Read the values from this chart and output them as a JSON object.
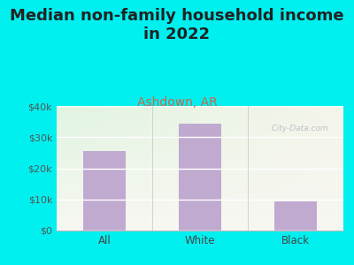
{
  "title": "Median non-family household income\nin 2022",
  "subtitle": "Ashdown, AR",
  "categories": [
    "All",
    "White",
    "Black"
  ],
  "values": [
    25500,
    34200,
    9500
  ],
  "bar_color": "#c0aad0",
  "title_fontsize": 13,
  "subtitle_fontsize": 10,
  "subtitle_color": "#cc6644",
  "title_color": "#222222",
  "background_color": "#00f0f0",
  "plot_bg_color_topleft": "#d8eed8",
  "plot_bg_color_topright": "#f0ede0",
  "plot_bg_color_bottom": "#f5f5ee",
  "ylim": [
    0,
    40000
  ],
  "yticks": [
    0,
    10000,
    20000,
    30000,
    40000
  ],
  "ytick_labels": [
    "$0",
    "$10k",
    "$20k",
    "$30k",
    "$40k"
  ],
  "watermark": "  City-Data.com"
}
